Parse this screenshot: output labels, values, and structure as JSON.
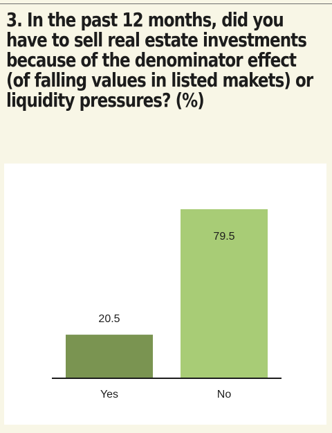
{
  "title": "3. In the past 12 months, did you have to sell real estate investments because of the denominator effect (of falling values in listed makets) or liquidity pressures? (%)",
  "colors": {
    "page_background": "#f8f6e6",
    "panel_background": "#ffffff",
    "yes_bar": "#7a9451",
    "no_bar": "#a8cc76",
    "axis": "#1c1c1c"
  },
  "chart_data": {
    "type": "bar",
    "categories": [
      "Yes",
      "No"
    ],
    "values": [
      20.5,
      79.5
    ],
    "data_labels": [
      "20.5",
      "79.5"
    ],
    "title": "3. In the past 12 months, did you have to sell real estate investments because of the denominator effect (of falling values in listed makets) or liquidity pressures? (%)",
    "xlabel": "",
    "ylabel": "",
    "ylim": [
      0,
      100
    ],
    "grid": false,
    "legend": "none"
  }
}
